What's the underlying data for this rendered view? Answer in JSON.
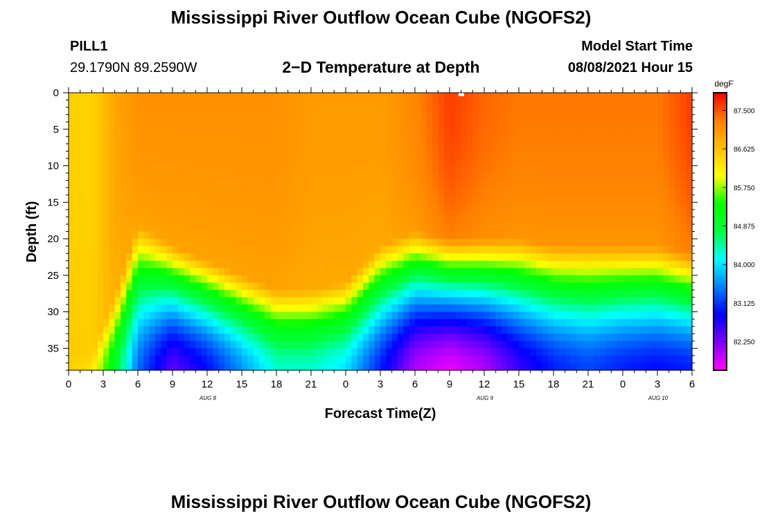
{
  "header": {
    "title": "Mississippi River Outflow Ocean Cube (NGOFS2)",
    "station": "PILL1",
    "coords": "29.1790N  89.2590W",
    "subtitle": "2−D Temperature at Depth",
    "model_label": "Model Start Time",
    "model_time": "08/08/2021 Hour 15"
  },
  "footer": {
    "title": "Mississippi River Outflow Ocean Cube (NGOFS2)"
  },
  "chart_data": {
    "type": "heatmap",
    "title": "2−D Temperature at Depth",
    "xlabel": "Forecast Time(Z)",
    "ylabel": "Depth (ft)",
    "x_tick_labels": [
      "0",
      "3",
      "6",
      "9",
      "12",
      "15",
      "18",
      "21",
      "0",
      "3",
      "6",
      "9",
      "12",
      "15",
      "18",
      "21",
      "0",
      "3",
      "6"
    ],
    "date_labels": [
      {
        "label": "AUG  8",
        "tick_index": 4
      },
      {
        "label": "AUG  9",
        "tick_index": 12
      },
      {
        "label": "AUG  10",
        "tick_index": 17
      }
    ],
    "x_range_hours": [
      0,
      54
    ],
    "y_ticks": [
      0,
      5,
      10,
      15,
      20,
      25,
      30,
      35
    ],
    "ylim": [
      0,
      38
    ],
    "y_inverted": true,
    "colorbar": {
      "unit": "degF",
      "tick_labels": [
        "87.500",
        "86.625",
        "85.750",
        "84.875",
        "84.000",
        "83.125",
        "82.250"
      ],
      "range": [
        81.6,
        87.9
      ],
      "colors": [
        "#ff00ff",
        "#8000ff",
        "#0000ff",
        "#0080ff",
        "#00ffff",
        "#00ff40",
        "#00ff00",
        "#ffff00",
        "#ffc000",
        "#ff8000",
        "#ff0000"
      ]
    },
    "profiles": [
      {
        "hour": 0,
        "top": 86.5,
        "top_depth": 36,
        "bottom": 86.5
      },
      {
        "hour": 2,
        "top": 86.45,
        "top_depth": 36,
        "bottom": 86.3
      },
      {
        "hour": 4,
        "top": 86.9,
        "top_depth": 28,
        "bottom": 85.0
      },
      {
        "hour": 6,
        "top": 87.1,
        "top_depth": 18,
        "bottom": 83.4
      },
      {
        "hour": 9,
        "top": 87.1,
        "top_depth": 21,
        "bottom": 82.4
      },
      {
        "hour": 12,
        "top": 87.1,
        "top_depth": 23,
        "bottom": 82.9
      },
      {
        "hour": 15,
        "top": 87.1,
        "top_depth": 25,
        "bottom": 83.6
      },
      {
        "hour": 18,
        "top": 87.1,
        "top_depth": 27,
        "bottom": 84.3
      },
      {
        "hour": 21,
        "top": 87.0,
        "top_depth": 27,
        "bottom": 84.3
      },
      {
        "hour": 24,
        "top": 87.0,
        "top_depth": 26,
        "bottom": 84.0
      },
      {
        "hour": 27,
        "top": 87.0,
        "top_depth": 21,
        "bottom": 83.0
      },
      {
        "hour": 30,
        "top": 87.2,
        "top_depth": 19,
        "bottom": 82.0
      },
      {
        "hour": 33,
        "top": 87.6,
        "top_depth": 20,
        "bottom": 81.7
      },
      {
        "hour": 36,
        "top": 87.4,
        "top_depth": 20,
        "bottom": 82.0
      },
      {
        "hour": 39,
        "top": 87.3,
        "top_depth": 20,
        "bottom": 82.6
      },
      {
        "hour": 42,
        "top": 87.3,
        "top_depth": 21,
        "bottom": 83.0
      },
      {
        "hour": 45,
        "top": 87.3,
        "top_depth": 21,
        "bottom": 83.2
      },
      {
        "hour": 48,
        "top": 87.3,
        "top_depth": 21,
        "bottom": 83.0
      },
      {
        "hour": 51,
        "top": 87.3,
        "top_depth": 21,
        "bottom": 82.9
      },
      {
        "hour": 54,
        "top": 87.6,
        "top_depth": 22,
        "bottom": 83.0
      }
    ]
  }
}
